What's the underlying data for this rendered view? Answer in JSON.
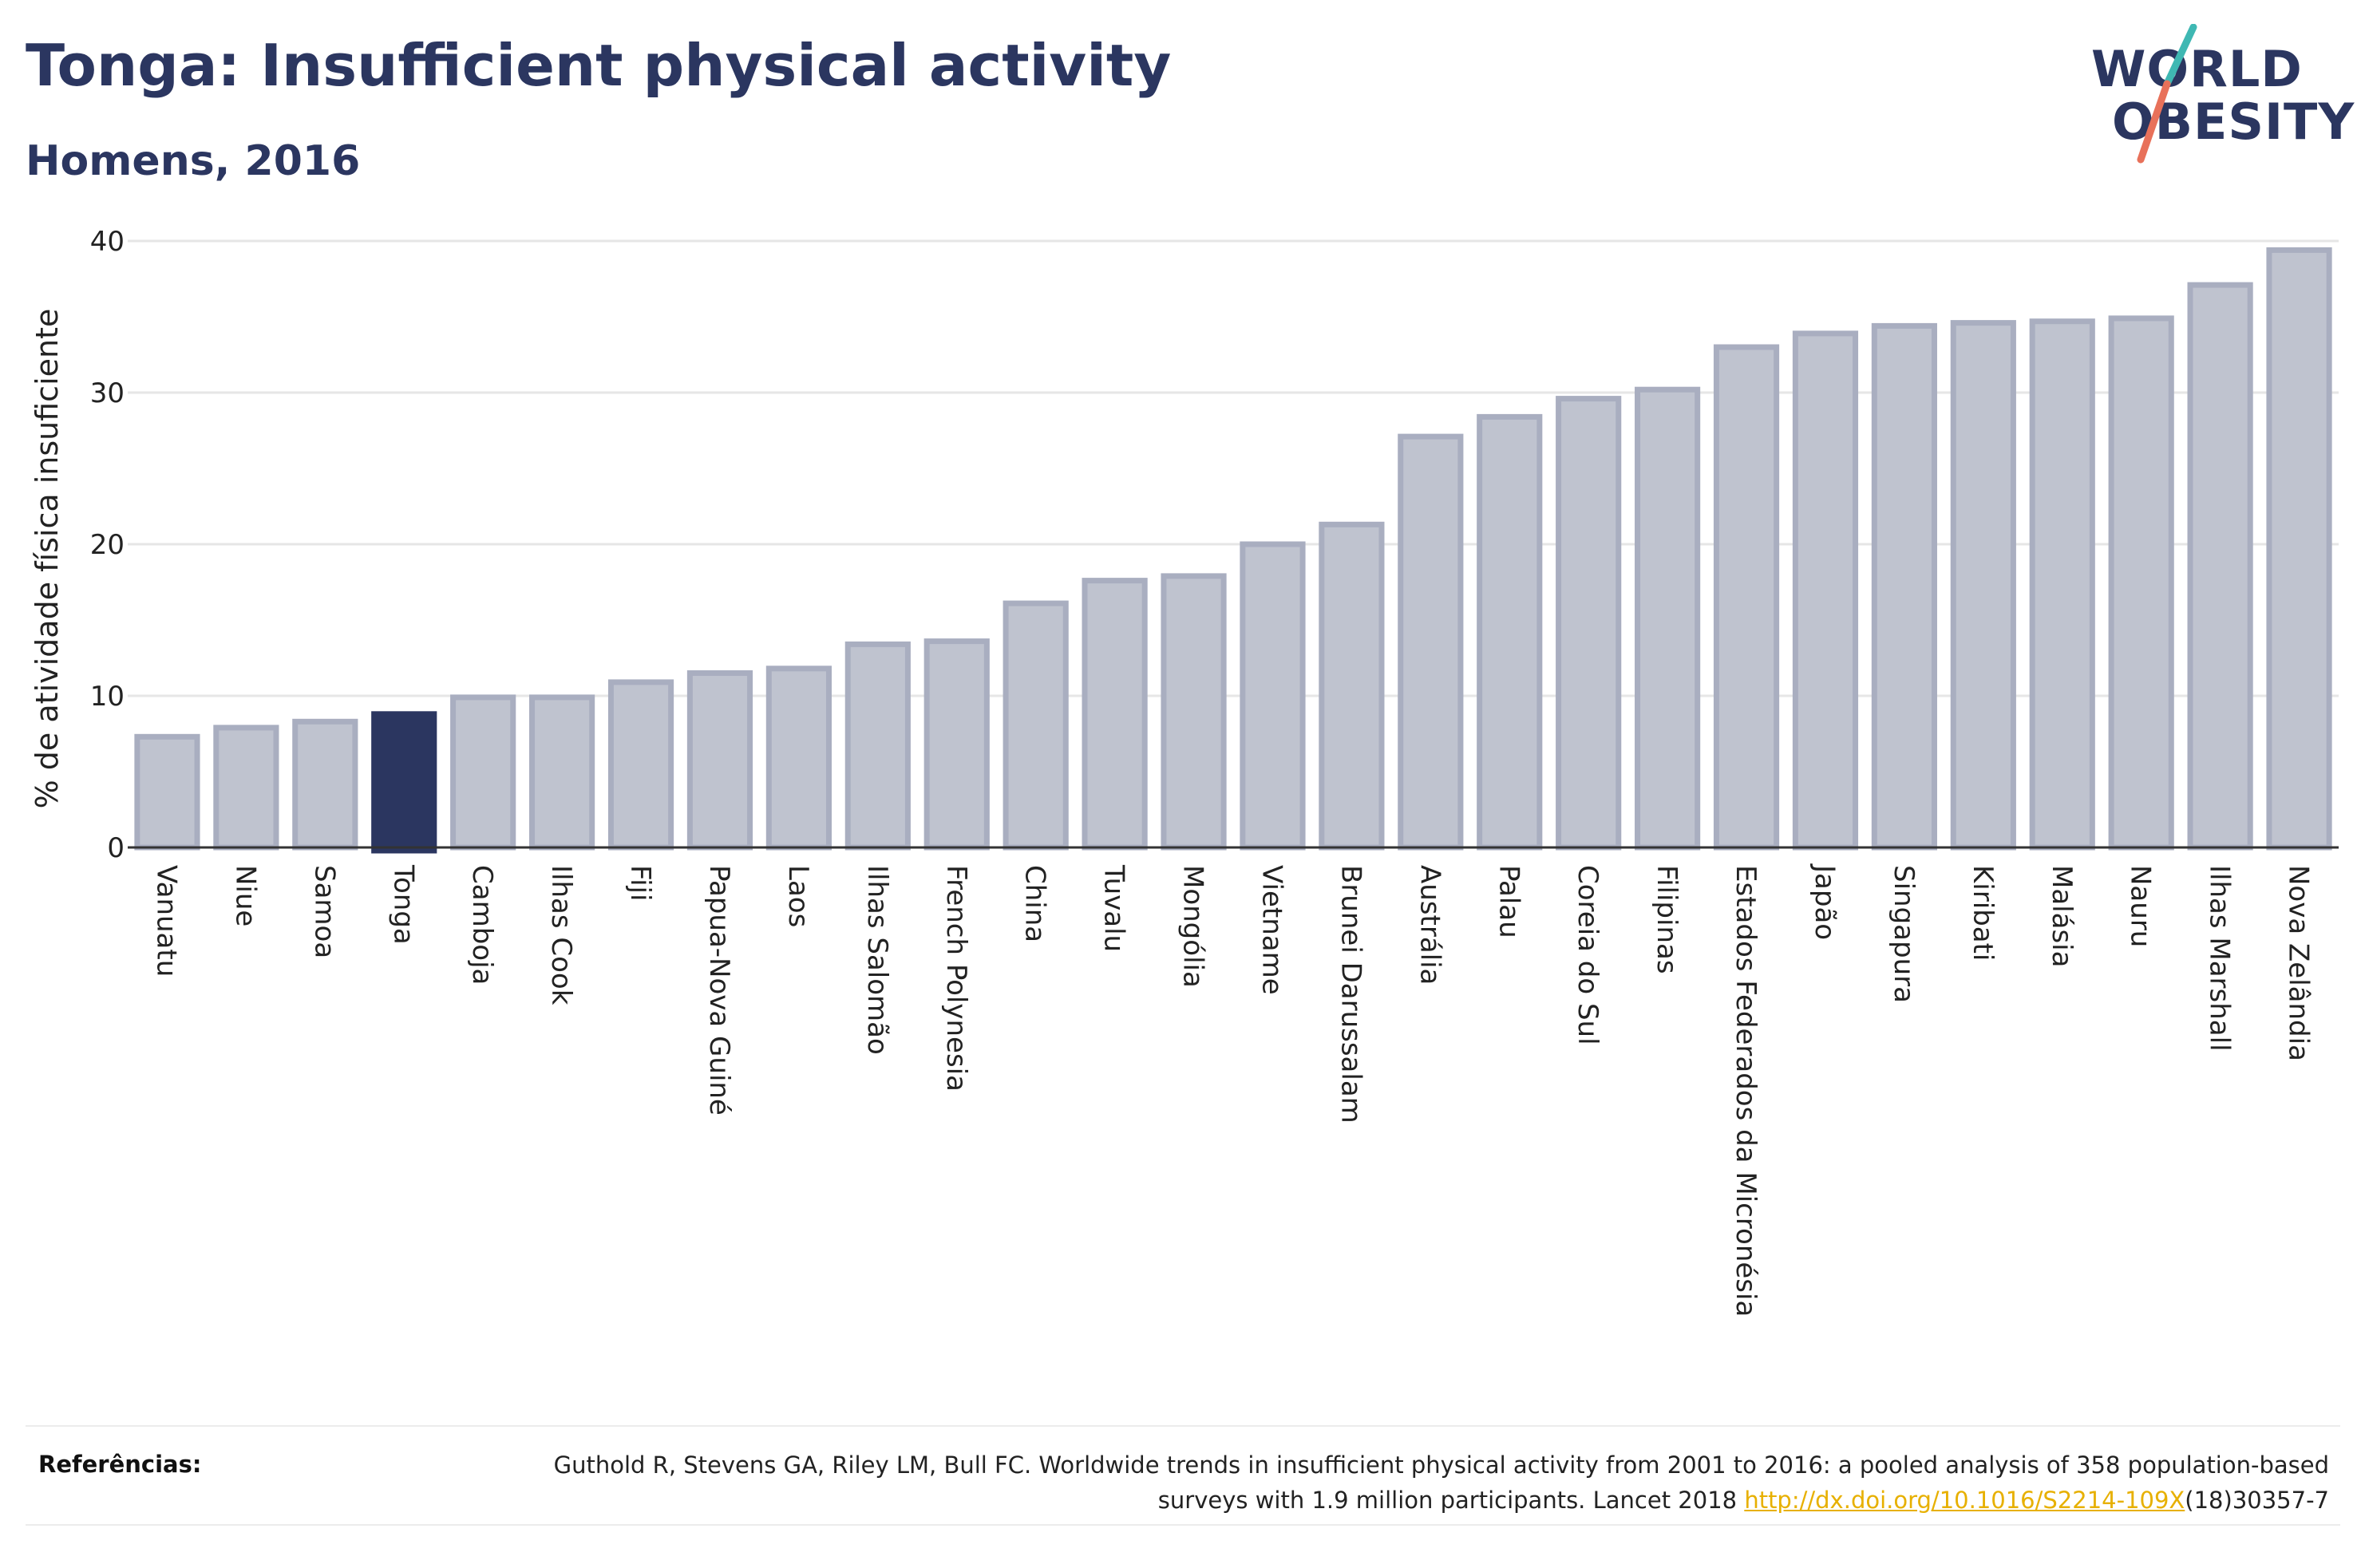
{
  "header": {
    "title": "Tonga: Insufficient physical activity",
    "subtitle": "Homens, 2016"
  },
  "logo": {
    "line1": "WORLD",
    "line2": "OBESITY",
    "colors": {
      "text": "#2b3660",
      "slash_top": "#3fb8b3",
      "slash_bottom": "#e8715a"
    }
  },
  "chart_data": {
    "type": "bar",
    "ylabel": "% de atividade física insuficiente",
    "xlabel": "",
    "ylim": [
      0,
      40
    ],
    "yticks": [
      0,
      10,
      20,
      30,
      40
    ],
    "grid": true,
    "highlight": "Tonga",
    "colors": {
      "bar": "#bfc3cf",
      "bar_edge": "#a9aec0",
      "highlight": "#2b3660"
    },
    "categories": [
      "Vanuatu",
      "Niue",
      "Samoa",
      "Tonga",
      "Camboja",
      "Ilhas Cook",
      "Fiji",
      "Papua-Nova Guiné",
      "Laos",
      "Ilhas Salomão",
      "French Polynesia",
      "China",
      "Tuvalu",
      "Mongólia",
      "Vietname",
      "Brunei Darussalam",
      "Austrália",
      "Palau",
      "Coreia do Sul",
      "Filipinas",
      "Estados Federados da Micronésia",
      "Japão",
      "Singapura",
      "Kiribati",
      "Malásia",
      "Nauru",
      "Ilhas Marshall",
      "Nova Zelândia"
    ],
    "values": [
      7.3,
      7.9,
      8.3,
      8.8,
      9.9,
      9.9,
      10.9,
      11.5,
      11.8,
      13.4,
      13.6,
      16.1,
      17.6,
      17.9,
      20.0,
      21.3,
      27.1,
      28.4,
      29.6,
      30.2,
      33.0,
      33.9,
      34.4,
      34.6,
      34.7,
      34.9,
      37.1,
      39.4
    ]
  },
  "references": {
    "label": "Referências:",
    "text_before": "Guthold R, Stevens GA, Riley LM, Bull FC. Worldwide trends in insufficient physical activity from 2001 to 2016: a pooled analysis of 358 population-based surveys with 1.9 million participants. Lancet 2018 ",
    "link": "http://dx.doi.org/10.1016/S2214-109X",
    "text_after": "(18)30357-7"
  }
}
